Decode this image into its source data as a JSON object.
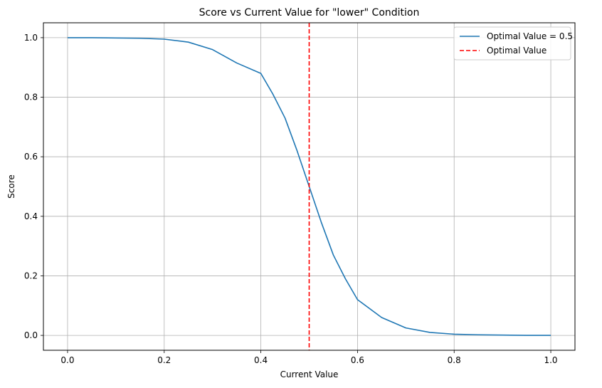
{
  "chart_data": {
    "type": "line",
    "title": "Score vs Current Value for \"lower\" Condition",
    "xlabel": "Current Value",
    "ylabel": "Score",
    "xlim": [
      -0.05,
      1.05
    ],
    "ylim": [
      -0.05,
      1.05
    ],
    "x_ticks": [
      0.0,
      0.2,
      0.4,
      0.6,
      0.8,
      1.0
    ],
    "x_tick_labels": [
      "0.0",
      "0.2",
      "0.4",
      "0.6",
      "0.8",
      "1.0"
    ],
    "y_ticks": [
      0.0,
      0.2,
      0.4,
      0.6,
      0.8,
      1.0
    ],
    "y_tick_labels": [
      "0.0",
      "0.2",
      "0.4",
      "0.6",
      "0.8",
      "1.0"
    ],
    "grid": true,
    "legend_position": "top-right",
    "series": [
      {
        "name": "Optimal Value = 0.5",
        "color": "#1f77b4",
        "style": "solid",
        "x": [
          0.0,
          0.05,
          0.1,
          0.15,
          0.2,
          0.25,
          0.3,
          0.35,
          0.4,
          0.425,
          0.45,
          0.475,
          0.5,
          0.525,
          0.55,
          0.575,
          0.6,
          0.65,
          0.7,
          0.75,
          0.8,
          0.85,
          0.9,
          0.95,
          1.0
        ],
        "values": [
          1.0,
          1.0,
          0.999,
          0.998,
          0.995,
          0.985,
          0.96,
          0.915,
          0.88,
          0.81,
          0.73,
          0.62,
          0.5,
          0.38,
          0.27,
          0.19,
          0.12,
          0.06,
          0.025,
          0.01,
          0.004,
          0.002,
          0.001,
          0.0,
          0.0
        ]
      }
    ],
    "vlines": [
      {
        "name": "Optimal Value",
        "x": 0.5,
        "color": "#ff0000",
        "style": "dashed"
      }
    ]
  }
}
